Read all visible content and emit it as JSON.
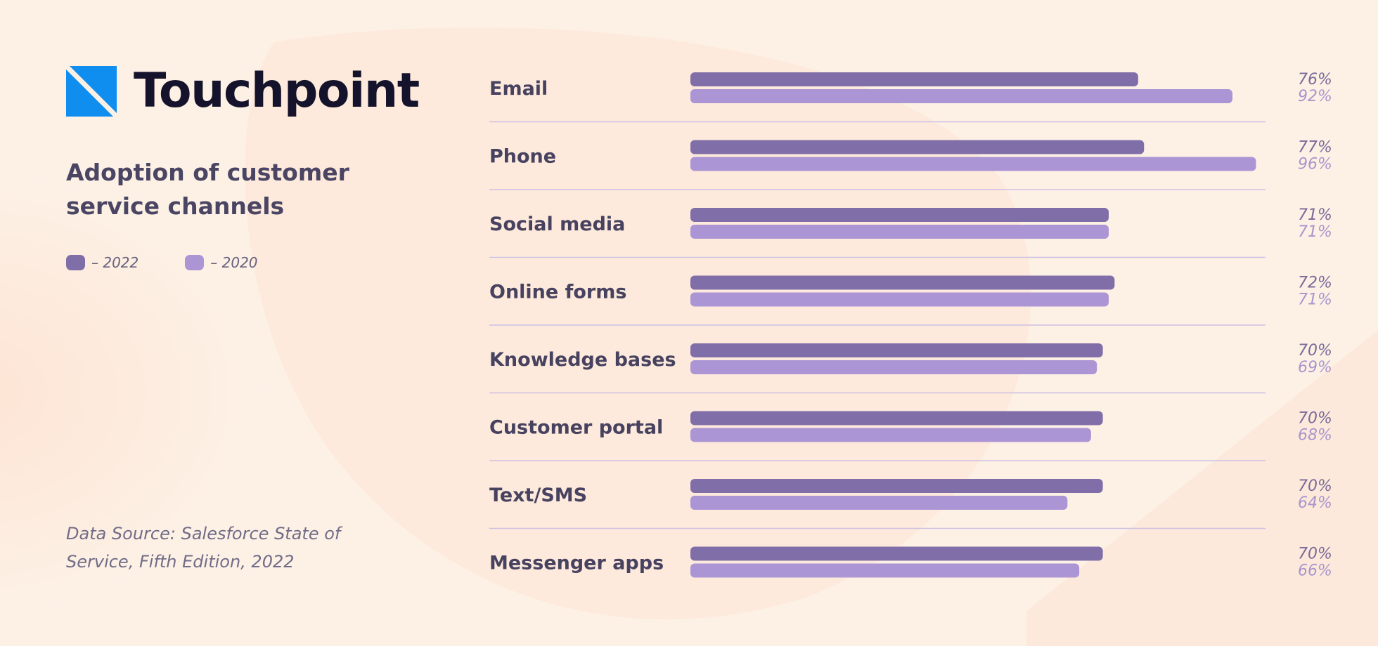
{
  "brand": {
    "name": "Touchpoint",
    "mark_color": "#0f8ef0"
  },
  "colors": {
    "series_2022": "#806ea9",
    "series_2020": "#ab95d4",
    "separator": "#cdbfe3",
    "label_2022": "#7a6a98",
    "label_2020": "#a895cc"
  },
  "source": "Data Source: Salesforce State of Service, Fifth Edition, 2022",
  "chart_data": {
    "type": "bar",
    "orientation": "horizontal",
    "title": "Adoption of customer service channels",
    "categories": [
      "Email",
      "Phone",
      "Social media",
      "Online forms",
      "Knowledge bases",
      "Customer portal",
      "Text/SMS",
      "Messenger apps"
    ],
    "series": [
      {
        "name": "2022",
        "legend_label": "– 2022",
        "values": [
          76,
          77,
          71,
          72,
          70,
          70,
          70,
          70
        ]
      },
      {
        "name": "2020",
        "legend_label": "– 2020",
        "values": [
          92,
          96,
          71,
          71,
          69,
          68,
          64,
          66
        ]
      }
    ],
    "value_suffix": "%",
    "xlim": [
      0,
      100
    ],
    "grid": false,
    "legend_position": "left"
  }
}
